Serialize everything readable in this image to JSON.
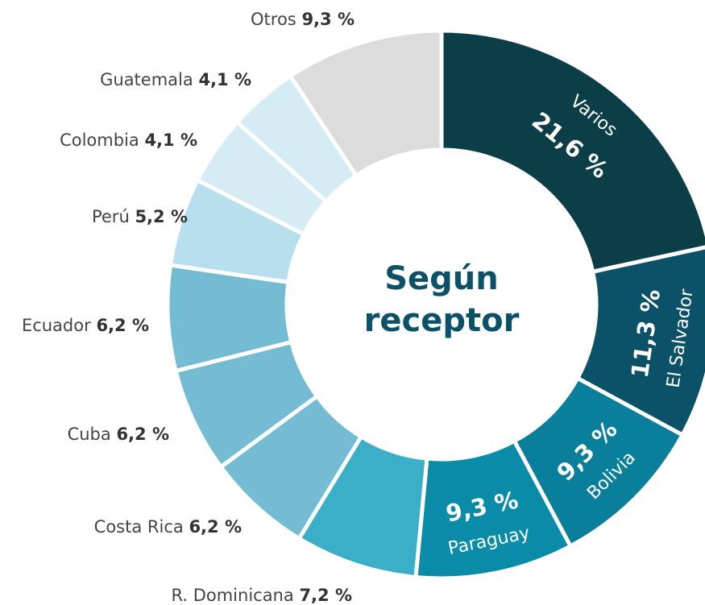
{
  "chart_data": {
    "type": "donut",
    "title": "Según receptor",
    "categories": [
      "Varios",
      "El Salvador",
      "Bolivia",
      "Paraguay",
      "R. Dominicana",
      "Costa Rica",
      "Cuba",
      "Ecuador",
      "Perú",
      "Colombia",
      "Guatemala",
      "Otros"
    ],
    "values": [
      21.6,
      11.3,
      9.3,
      9.3,
      7.2,
      6.2,
      6.2,
      6.2,
      5.2,
      4.1,
      4.1,
      9.3
    ],
    "value_labels": [
      "21,6 %",
      "11,3 %",
      "9,3 %",
      "9,3 %",
      "7,2 %",
      "6,2 %",
      "6,2 %",
      "6,2 %",
      "5,2 %",
      "4,1 %",
      "4,1 %",
      "9,3 %"
    ],
    "colors": [
      "#0b3e47",
      "#0b5268",
      "#0a7f9b",
      "#0a8ba8",
      "#3cafc8",
      "#73bcd3",
      "#73bcd3",
      "#73bcd3",
      "#b8dfed",
      "#d5ecf5",
      "#d5ecf5",
      "#dcdcdc"
    ]
  }
}
